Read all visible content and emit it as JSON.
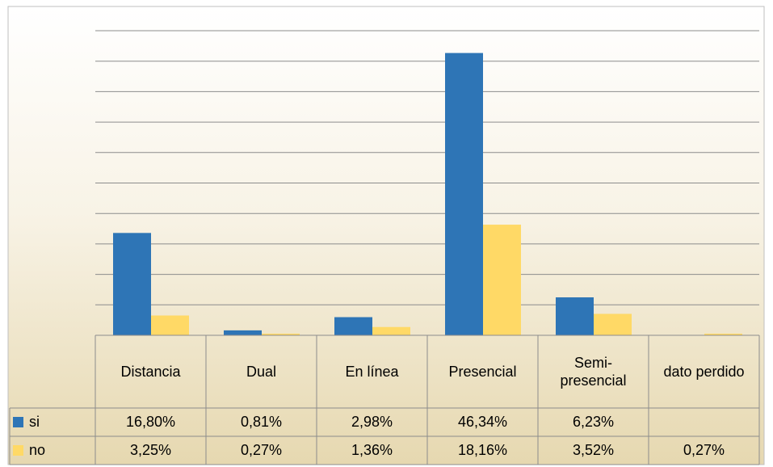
{
  "chart_data": {
    "type": "bar",
    "categories": [
      "Distancia",
      "Dual",
      "En línea",
      "Presencial",
      "Semi-presencial",
      "dato perdido"
    ],
    "series": [
      {
        "name": "si",
        "color": "#2e75b6",
        "values": [
          16.8,
          0.81,
          2.98,
          46.34,
          6.23,
          null
        ],
        "value_labels": [
          "16,80%",
          "0,81%",
          "2,98%",
          "46,34%",
          "6,23%",
          null
        ]
      },
      {
        "name": "no",
        "color": "#ffd966",
        "values": [
          3.25,
          0.27,
          1.36,
          18.16,
          3.52,
          0.27
        ],
        "value_labels": [
          "3,25%",
          "0,27%",
          "1,36%",
          "18,16%",
          "3,52%",
          "0,27%"
        ]
      }
    ],
    "ylim": [
      0,
      50
    ],
    "yticks": [
      0,
      5,
      10,
      15,
      20,
      25,
      30,
      35,
      40,
      45,
      50
    ],
    "grid": true
  }
}
